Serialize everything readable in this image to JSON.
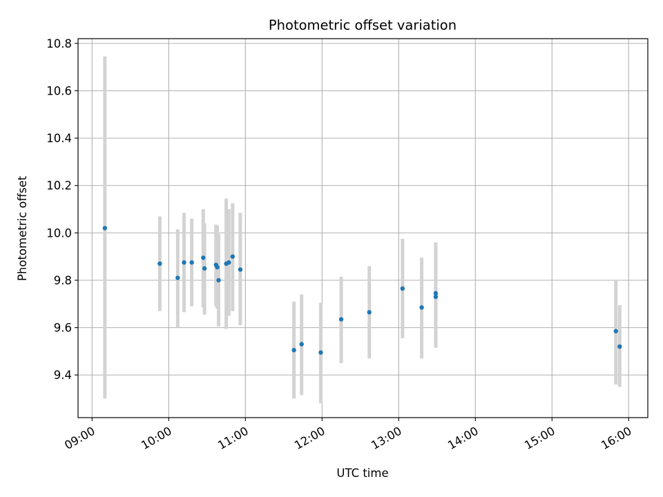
{
  "chart_data": {
    "type": "scatter",
    "title": "Photometric offset variation",
    "xlabel": "UTC time",
    "ylabel": "Photometric offset",
    "x_ticks": [
      "09:00",
      "10:00",
      "11:00",
      "12:00",
      "13:00",
      "14:00",
      "15:00",
      "16:00"
    ],
    "y_ticks": [
      "9.4",
      "9.6",
      "9.8",
      "10.0",
      "10.2",
      "10.4",
      "10.6",
      "10.8"
    ],
    "xlim": [
      "08:49",
      "16:15"
    ],
    "ylim": [
      9.22,
      10.82
    ],
    "grid": true,
    "colors": {
      "point": "#1f77b4",
      "errorbar": "#d3d3d3",
      "grid": "#b0b0b0"
    },
    "series": [
      {
        "points": [
          {
            "x": "09:10",
            "y": 10.02,
            "ylow": 9.3,
            "yhigh": 10.745
          },
          {
            "x": "09:53",
            "y": 9.87,
            "ylow": 9.67,
            "yhigh": 10.07
          },
          {
            "x": "10:07",
            "y": 9.81,
            "ylow": 9.6,
            "yhigh": 10.015
          },
          {
            "x": "10:12",
            "y": 9.875,
            "ylow": 9.665,
            "yhigh": 10.085
          },
          {
            "x": "10:18",
            "y": 9.875,
            "ylow": 9.69,
            "yhigh": 10.06
          },
          {
            "x": "10:27",
            "y": 9.895,
            "ylow": 9.685,
            "yhigh": 10.1
          },
          {
            "x": "10:28",
            "y": 9.85,
            "ylow": 9.655,
            "yhigh": 10.04
          },
          {
            "x": "10:37",
            "y": 9.865,
            "ylow": 9.69,
            "yhigh": 10.035
          },
          {
            "x": "10:38",
            "y": 9.855,
            "ylow": 9.68,
            "yhigh": 10.03
          },
          {
            "x": "10:39",
            "y": 9.8,
            "ylow": 9.605,
            "yhigh": 9.995
          },
          {
            "x": "10:45",
            "y": 9.87,
            "ylow": 9.595,
            "yhigh": 10.145
          },
          {
            "x": "10:47",
            "y": 9.875,
            "ylow": 9.65,
            "yhigh": 10.1
          },
          {
            "x": "10:50",
            "y": 9.9,
            "ylow": 9.67,
            "yhigh": 10.125
          },
          {
            "x": "10:56",
            "y": 9.845,
            "ylow": 9.61,
            "yhigh": 10.085
          },
          {
            "x": "11:38",
            "y": 9.505,
            "ylow": 9.3,
            "yhigh": 9.71
          },
          {
            "x": "11:44",
            "y": 9.53,
            "ylow": 9.315,
            "yhigh": 9.74
          },
          {
            "x": "11:59",
            "y": 9.495,
            "ylow": 9.28,
            "yhigh": 9.705
          },
          {
            "x": "12:15",
            "y": 9.635,
            "ylow": 9.45,
            "yhigh": 9.815
          },
          {
            "x": "12:37",
            "y": 9.665,
            "ylow": 9.47,
            "yhigh": 9.86
          },
          {
            "x": "13:03",
            "y": 9.765,
            "ylow": 9.555,
            "yhigh": 9.975
          },
          {
            "x": "13:18",
            "y": 9.685,
            "ylow": 9.47,
            "yhigh": 9.895
          },
          {
            "x": "13:29",
            "y": 9.745,
            "ylow": 9.515,
            "yhigh": 9.96
          },
          {
            "x": "13:29",
            "y": 9.73,
            "ylow": 9.515,
            "yhigh": 9.945
          },
          {
            "x": "15:50",
            "y": 9.585,
            "ylow": 9.36,
            "yhigh": 9.8
          },
          {
            "x": "15:53",
            "y": 9.52,
            "ylow": 9.35,
            "yhigh": 9.695
          }
        ]
      }
    ]
  }
}
